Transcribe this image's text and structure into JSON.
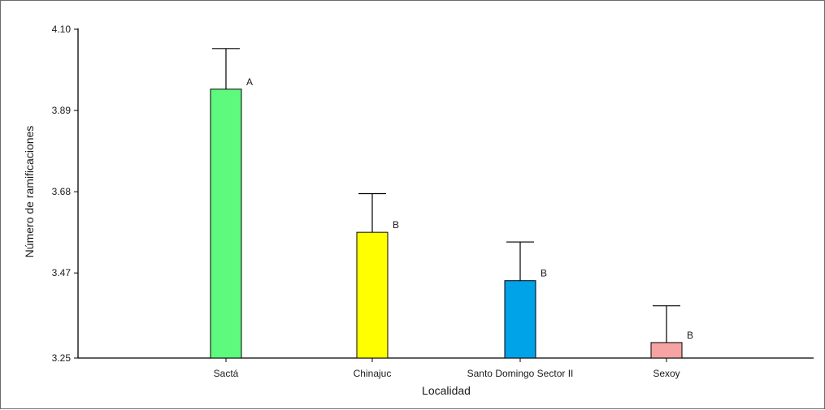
{
  "chart_data": {
    "type": "bar",
    "title": "",
    "xlabel": "Localidad",
    "ylabel": "Número de ramificaciones",
    "categories": [
      "Sactá",
      "Chinajuc",
      "Santo Domingo Sector II",
      "Sexoy"
    ],
    "values": [
      3.945,
      3.575,
      3.45,
      3.29
    ],
    "error_upper": [
      4.05,
      3.675,
      3.55,
      3.385
    ],
    "group_letters": [
      "A",
      "B",
      "B",
      "B"
    ],
    "bar_colors": [
      "#5dfa7d",
      "#ffff00",
      "#00a2e8",
      "#f5a3a3"
    ],
    "ylim": [
      3.25,
      4.1
    ],
    "yticks": [
      "3.25",
      "3.47",
      "3.68",
      "3.89",
      "4.10"
    ],
    "grid": false
  }
}
